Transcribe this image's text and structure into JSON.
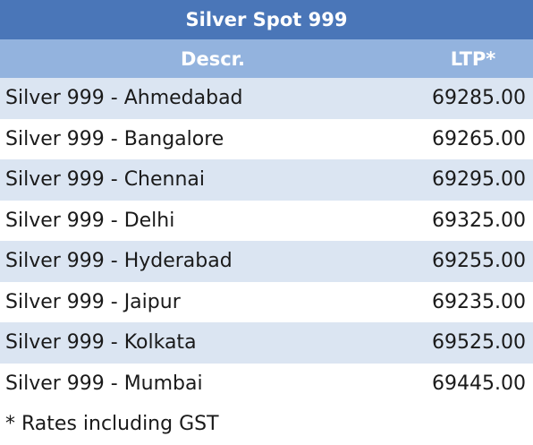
{
  "table": {
    "title": "Silver Spot 999",
    "header": [
      "Descr.",
      "LTP*"
    ],
    "rows": [
      [
        "Silver 999 - Ahmedabad",
        "69285.00"
      ],
      [
        "Silver 999 - Bangalore",
        "69265.00"
      ],
      [
        "Silver 999 - Chennai",
        "69295.00"
      ],
      [
        "Silver 999 - Delhi",
        "69325.00"
      ],
      [
        "Silver 999 - Hyderabad",
        "69255.00"
      ],
      [
        "Silver 999 - Jaipur",
        "69235.00"
      ],
      [
        "Silver 999 - Kolkata",
        "69525.00"
      ],
      [
        "Silver 999 - Mumbai",
        "69445.00"
      ]
    ]
  },
  "footnote": "* Rates including GST"
}
